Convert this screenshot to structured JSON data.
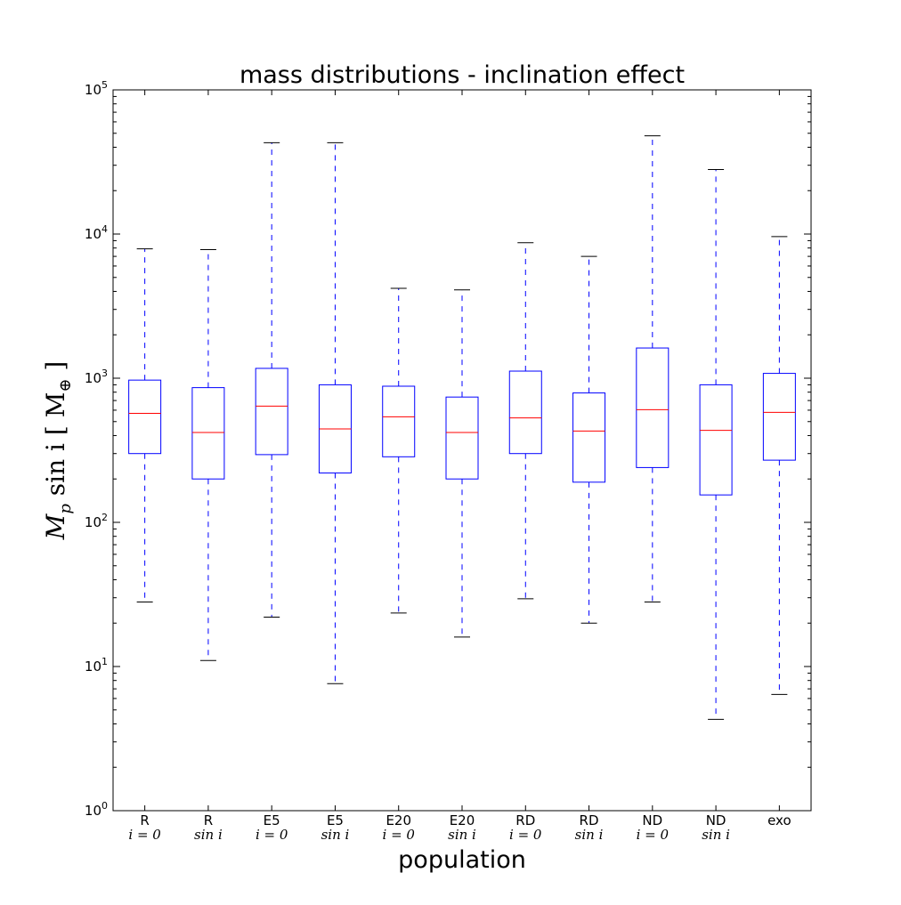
{
  "chart_data": {
    "type": "boxplot",
    "title": "mass distributions - inclination effect",
    "xlabel": "population",
    "ylabel": "M_p sin i [M_⊕]",
    "ylabel_main": "M",
    "ylabel_sub": "p",
    "ylabel_rest": " sin i [ M",
    "ylabel_sub2": "⊕",
    "ylabel_close": " ]",
    "yscale": "log",
    "ylim": [
      1,
      100000
    ],
    "ytick_base": "10",
    "ytick_exponents": [
      "0",
      "1",
      "2",
      "3",
      "4",
      "5"
    ],
    "categories": [
      {
        "label": "R",
        "sub": "i = 0",
        "whisker_low": 28,
        "q1": 300,
        "median": 570,
        "q3": 970,
        "whisker_high": 7900
      },
      {
        "label": "R",
        "sub": "sin i",
        "whisker_low": 11,
        "q1": 200,
        "median": 420,
        "q3": 860,
        "whisker_high": 7800
      },
      {
        "label": "E5",
        "sub": "i = 0",
        "whisker_low": 22,
        "q1": 295,
        "median": 640,
        "q3": 1170,
        "whisker_high": 43000
      },
      {
        "label": "E5",
        "sub": "sin i",
        "whisker_low": 7.6,
        "q1": 220,
        "median": 445,
        "q3": 900,
        "whisker_high": 43000
      },
      {
        "label": "E20",
        "sub": "i = 0",
        "whisker_low": 23.5,
        "q1": 285,
        "median": 540,
        "q3": 880,
        "whisker_high": 4200
      },
      {
        "label": "E20",
        "sub": "sin i",
        "whisker_low": 16,
        "q1": 200,
        "median": 420,
        "q3": 740,
        "whisker_high": 4100
      },
      {
        "label": "RD",
        "sub": "i = 0",
        "whisker_low": 29.5,
        "q1": 300,
        "median": 530,
        "q3": 1120,
        "whisker_high": 8700
      },
      {
        "label": "RD",
        "sub": "sin i",
        "whisker_low": 20,
        "q1": 190,
        "median": 430,
        "q3": 790,
        "whisker_high": 7000
      },
      {
        "label": "ND",
        "sub": "i = 0",
        "whisker_low": 28,
        "q1": 240,
        "median": 605,
        "q3": 1620,
        "whisker_high": 48000
      },
      {
        "label": "ND",
        "sub": "sin i",
        "whisker_low": 4.3,
        "q1": 155,
        "median": 435,
        "q3": 900,
        "whisker_high": 28000
      },
      {
        "label": "exo",
        "sub": "",
        "whisker_low": 6.4,
        "q1": 270,
        "median": 580,
        "q3": 1080,
        "whisker_high": 9600
      }
    ],
    "colors": {
      "box": "#0000ff",
      "median": "#ff0000",
      "whisker": "#0000ff",
      "cap": "#000000",
      "axes": "#000000",
      "background": "#ffffff"
    }
  }
}
